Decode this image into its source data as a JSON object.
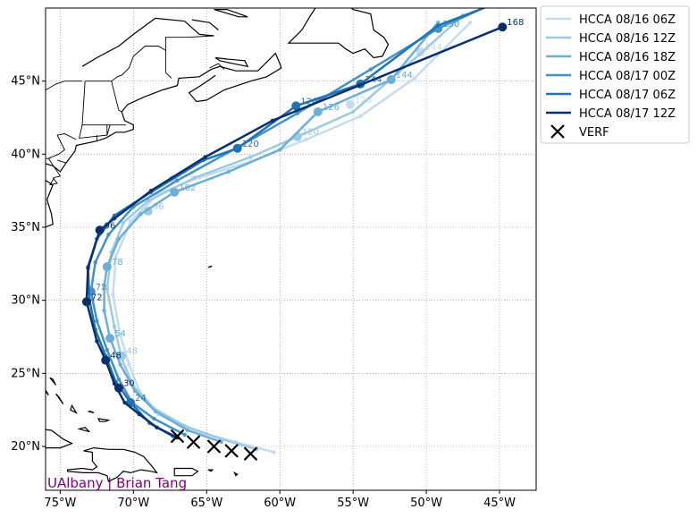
{
  "map": {
    "credit": "UAlbany | Brian Tang",
    "lon_range": [
      -76.0,
      -42.5
    ],
    "lat_range": [
      17.0,
      50.0
    ],
    "lon_ticks": [
      {
        "value": -75,
        "label": "75°W"
      },
      {
        "value": -70,
        "label": "70°W"
      },
      {
        "value": -65,
        "label": "65°W"
      },
      {
        "value": -60,
        "label": "60°W"
      },
      {
        "value": -55,
        "label": "55°W"
      },
      {
        "value": -50,
        "label": "50°W"
      },
      {
        "value": -45,
        "label": "45°W"
      }
    ],
    "lat_ticks": [
      {
        "value": 20,
        "label": "20°N"
      },
      {
        "value": 25,
        "label": "25°N"
      },
      {
        "value": 30,
        "label": "30°N"
      },
      {
        "value": 35,
        "label": "35°N"
      },
      {
        "value": 40,
        "label": "40°N"
      },
      {
        "value": 45,
        "label": "45°N"
      }
    ],
    "grid": true,
    "colors": {
      "coast": "#000000",
      "grid": "#888888",
      "verf": "#000000"
    }
  },
  "legend": {
    "placement": "outside top-right",
    "entries": [
      "HCCA 08/16 06Z",
      "HCCA 08/16 12Z",
      "HCCA 08/16 18Z",
      "HCCA 08/17 00Z",
      "HCCA 08/17 06Z",
      "HCCA 08/17 12Z",
      "VERF"
    ]
  },
  "chart_data": {
    "type": "map-tracks",
    "series": [
      {
        "name": "HCCA 08/16 06Z",
        "color": "#c6dbef",
        "points": [
          [
            -60.4,
            19.6
          ],
          [
            -63.0,
            20.3
          ],
          [
            -66.0,
            21.1
          ],
          [
            -68.3,
            22.2
          ],
          [
            -69.6,
            23.8
          ],
          [
            -70.3,
            25.6
          ],
          [
            -70.9,
            27.6
          ],
          [
            -71.4,
            30.4
          ],
          [
            -71.2,
            33.0
          ],
          [
            -70.2,
            35.4
          ],
          [
            -68.3,
            37.3
          ],
          [
            -65.5,
            38.4
          ],
          [
            -62.0,
            39.5
          ],
          [
            -58.2,
            41.0
          ],
          [
            -54.5,
            42.6
          ],
          [
            -50.8,
            45.2
          ],
          [
            -47.0,
            49.0
          ]
        ],
        "labels": [
          {
            "hour": "142",
            "lon": -67.3,
            "lat": 38.3
          },
          {
            "hour": "126",
            "lon": -55.2,
            "lat": 43.4
          },
          {
            "hour": "144",
            "lon": -50.4,
            "lat": 47.0
          }
        ]
      },
      {
        "name": "HCCA 08/16 12Z",
        "color": "#9ecae1",
        "points": [
          [
            -61.6,
            19.8
          ],
          [
            -64.0,
            20.5
          ],
          [
            -66.5,
            21.4
          ],
          [
            -68.6,
            22.6
          ],
          [
            -70.0,
            24.1
          ],
          [
            -70.8,
            26.0
          ],
          [
            -71.3,
            28.2
          ],
          [
            -71.8,
            30.8
          ],
          [
            -71.5,
            33.3
          ],
          [
            -70.7,
            35.3
          ],
          [
            -69.0,
            36.8
          ],
          [
            -65.8,
            38.4
          ],
          [
            -62.0,
            39.8
          ],
          [
            -58.8,
            41.2
          ],
          [
            -55.0,
            42.9
          ],
          [
            -50.5,
            46.8
          ],
          [
            -47.5,
            49.5
          ]
        ],
        "labels": [
          {
            "hour": "120",
            "lon": -58.8,
            "lat": 41.2
          },
          {
            "hour": "96",
            "lon": -69.0,
            "lat": 36.1
          },
          {
            "hour": "48",
            "lon": -70.8,
            "lat": 26.2
          }
        ]
      },
      {
        "name": "HCCA 08/16 18Z",
        "color": "#6baed6",
        "points": [
          [
            -64.0,
            20.3
          ],
          [
            -66.3,
            21.1
          ],
          [
            -68.5,
            22.4
          ],
          [
            -69.9,
            23.8
          ],
          [
            -70.9,
            25.6
          ],
          [
            -71.6,
            27.4
          ],
          [
            -72.0,
            29.3
          ],
          [
            -72.0,
            31.0
          ],
          [
            -71.8,
            32.3
          ],
          [
            -71.0,
            34.2
          ],
          [
            -69.5,
            35.9
          ],
          [
            -67.2,
            37.4
          ],
          [
            -63.5,
            38.8
          ],
          [
            -60.0,
            40.3
          ],
          [
            -57.4,
            42.9
          ],
          [
            -52.4,
            45.1
          ],
          [
            -49.2,
            49.0
          ]
        ],
        "labels": [
          {
            "hour": "102",
            "lon": -67.2,
            "lat": 37.4
          },
          {
            "hour": "126",
            "lon": -57.4,
            "lat": 42.9
          },
          {
            "hour": "78",
            "lon": -71.8,
            "lat": 32.3
          },
          {
            "hour": "54",
            "lon": -71.6,
            "lat": 27.4
          },
          {
            "hour": "144",
            "lon": -52.4,
            "lat": 45.1
          }
        ]
      },
      {
        "name": "HCCA 08/17 00Z",
        "color": "#4292c6",
        "points": [
          [
            -66.5,
            20.8
          ],
          [
            -68.6,
            21.9
          ],
          [
            -70.1,
            23.0
          ],
          [
            -71.0,
            24.6
          ],
          [
            -71.8,
            26.6
          ],
          [
            -72.5,
            28.6
          ],
          [
            -72.9,
            30.6
          ],
          [
            -72.6,
            32.6
          ],
          [
            -71.7,
            34.5
          ],
          [
            -70.0,
            36.4
          ],
          [
            -67.0,
            38.2
          ],
          [
            -63.0,
            40.4
          ],
          [
            -58.8,
            42.8
          ],
          [
            -53.8,
            45.8
          ],
          [
            -49.2,
            48.6
          ],
          [
            -45.0,
            50.5
          ]
        ],
        "labels": [
          {
            "hour": "72",
            "lon": -72.9,
            "lat": 30.6
          },
          {
            "hour": "150",
            "lon": -49.2,
            "lat": 48.6
          }
        ]
      },
      {
        "name": "HCCA 08/17 06Z",
        "color": "#2171b5",
        "points": [
          [
            -67.3,
            20.7
          ],
          [
            -68.9,
            21.6
          ],
          [
            -70.2,
            23.0
          ],
          [
            -71.2,
            24.4
          ],
          [
            -71.9,
            26.2
          ],
          [
            -72.6,
            28.0
          ],
          [
            -73.0,
            30.0
          ],
          [
            -73.1,
            32.3
          ],
          [
            -72.5,
            34.2
          ],
          [
            -71.3,
            35.8
          ],
          [
            -68.8,
            37.4
          ],
          [
            -65.2,
            39.6
          ],
          [
            -62.9,
            40.4
          ],
          [
            -58.9,
            43.3
          ],
          [
            -54.5,
            44.8
          ],
          [
            -49.2,
            48.8
          ],
          [
            -44.0,
            50.8
          ]
        ],
        "labels": [
          {
            "hour": "120",
            "lon": -62.9,
            "lat": 40.4
          },
          {
            "hour": "126",
            "lon": -58.9,
            "lat": 43.3
          },
          {
            "hour": "144",
            "lon": -54.5,
            "lat": 44.8
          },
          {
            "hour": "24",
            "lon": -70.2,
            "lat": 23.0
          }
        ]
      },
      {
        "name": "HCCA 08/17 12Z",
        "color": "#08306b",
        "points": [
          [
            -67.0,
            20.6
          ],
          [
            -68.4,
            21.3
          ],
          [
            -69.6,
            22.2
          ],
          [
            -70.6,
            23.0
          ],
          [
            -71.3,
            24.3
          ],
          [
            -71.9,
            25.9
          ],
          [
            -72.5,
            27.2
          ],
          [
            -73.2,
            29.9
          ],
          [
            -73.1,
            32.2
          ],
          [
            -72.3,
            34.8
          ],
          [
            -71.3,
            35.6
          ],
          [
            -68.8,
            37.5
          ],
          [
            -65.1,
            39.8
          ],
          [
            -60.5,
            42.3
          ],
          [
            -54.6,
            44.7
          ],
          [
            -44.8,
            48.7
          ]
        ],
        "labels": [
          {
            "hour": "168",
            "lon": -44.8,
            "lat": 48.7
          },
          {
            "hour": "96",
            "lon": -72.3,
            "lat": 34.8
          },
          {
            "hour": "72",
            "lon": -73.2,
            "lat": 29.9
          },
          {
            "hour": "48",
            "lon": -71.9,
            "lat": 25.9
          },
          {
            "hour": "30",
            "lon": -71.0,
            "lat": 24.0
          }
        ]
      }
    ],
    "verf": [
      [
        -67.0,
        20.7
      ],
      [
        -65.9,
        20.3
      ],
      [
        -64.5,
        20.0
      ],
      [
        -63.3,
        19.7
      ],
      [
        -62.0,
        19.5
      ]
    ]
  }
}
